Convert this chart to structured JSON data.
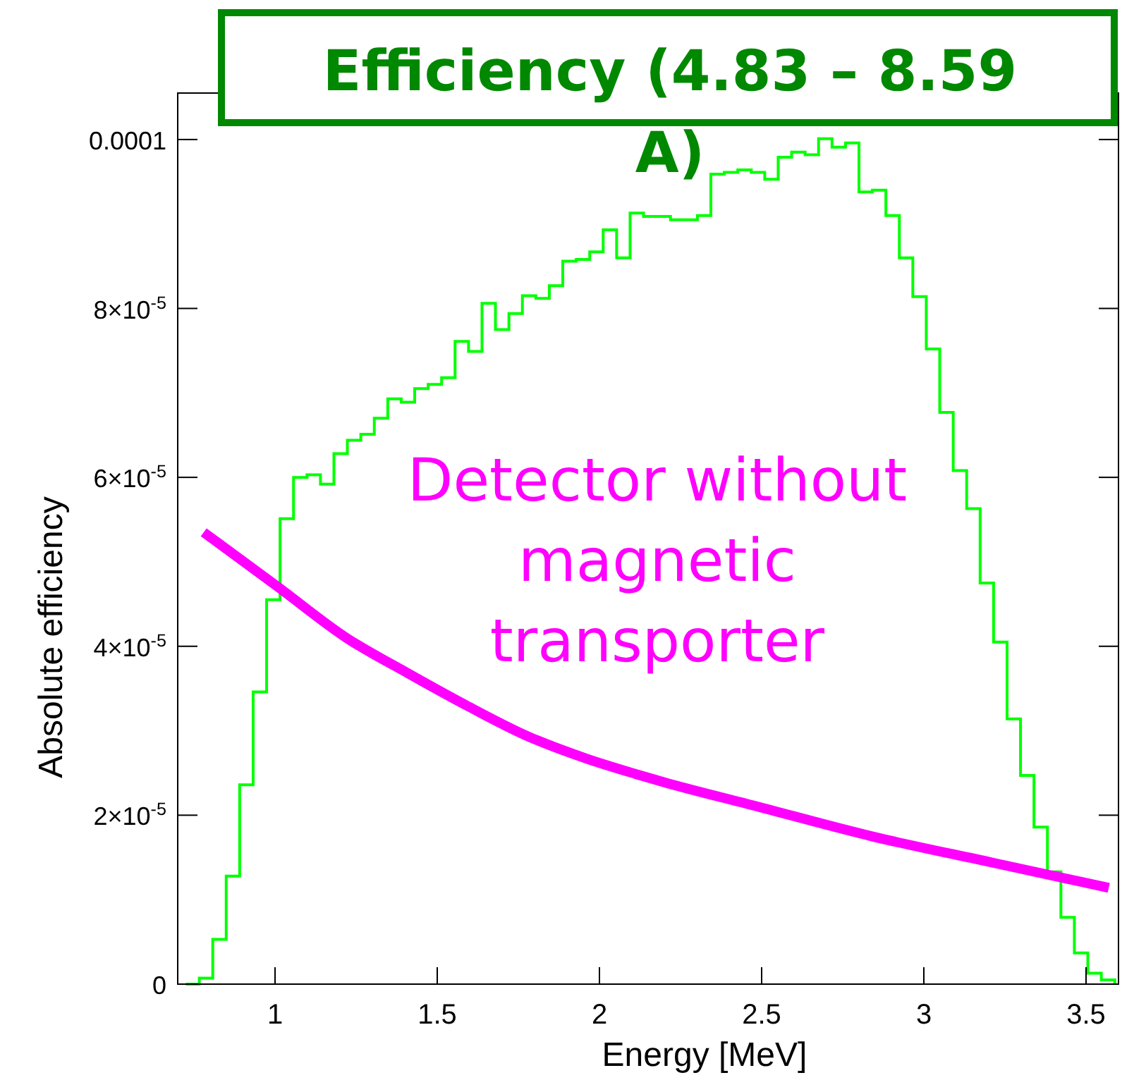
{
  "chart_data": {
    "type": "histogram",
    "title": "Efficiency (4.83 – 8.59 A)",
    "xlabel": "Energy [MeV]",
    "ylabel": "Absolute efficiency",
    "xlim": [
      0.7,
      3.6
    ],
    "xticks": [
      1,
      1.5,
      2,
      2.5,
      3,
      3.5
    ],
    "ylim": [
      0,
      0.0001055
    ],
    "yticks": [
      0,
      {
        "value": 2e-05,
        "label": "2×10$^{-5}$"
      },
      {
        "value": 4e-05,
        "label": "4×10$^{-5}$"
      },
      {
        "value": 6e-05,
        "label": "6×10$^{-5}$"
      },
      {
        "value": 8e-05,
        "label": "8×10$^{-5}$"
      },
      0.0001
    ],
    "grid": false,
    "annotations": [
      "Detector without magnetic transporter"
    ],
    "series": [
      {
        "color": "#00ff00",
        "bins": [
          0.725,
          0.7665,
          0.808,
          0.8495,
          0.891,
          0.9325,
          0.974,
          1.0155,
          1.057,
          1.0985,
          1.14,
          1.1815,
          1.223,
          1.2645,
          1.306,
          1.3475,
          1.389,
          1.4305,
          1.472,
          1.5135,
          1.555,
          1.5965,
          1.638,
          1.6795,
          1.721,
          1.7625,
          1.804,
          1.8455,
          1.887,
          1.9285,
          1.97,
          2.0115,
          2.053,
          2.0945,
          2.136,
          2.1775,
          2.219,
          2.2605,
          2.302,
          2.3435,
          2.385,
          2.4265,
          2.468,
          2.5095,
          2.551,
          2.5925,
          2.634,
          2.6755,
          2.717,
          2.7585,
          2.8,
          2.8415,
          2.883,
          2.9245,
          2.966,
          3.0075,
          3.049,
          3.0905,
          3.132,
          3.1735,
          3.215,
          3.2565,
          3.298,
          3.3395,
          3.381,
          3.4225,
          3.464,
          3.5055,
          3.547,
          3.5885
        ],
        "values": [
          0,
          7e-07,
          5.3e-06,
          1.28e-05,
          2.36e-05,
          3.46e-05,
          4.55e-05,
          5.51e-05,
          6e-05,
          6.03e-05,
          5.92e-05,
          6.28e-05,
          6.44e-05,
          6.51e-05,
          6.7e-05,
          6.93e-05,
          6.89e-05,
          7.05e-05,
          7.1e-05,
          7.18e-05,
          7.61e-05,
          7.49e-05,
          8.06e-05,
          7.75e-05,
          7.94e-05,
          8.15e-05,
          8.12e-05,
          8.27e-05,
          8.56e-05,
          8.58e-05,
          8.67e-05,
          8.93e-05,
          8.6e-05,
          9.13e-05,
          9.09e-05,
          9.09e-05,
          9.05e-05,
          9.05e-05,
          9.1e-05,
          9.59e-05,
          9.61e-05,
          9.64e-05,
          9.61e-05,
          9.53e-05,
          9.79e-05,
          9.85e-05,
          9.82e-05,
          0.0001001,
          9.91e-05,
          9.96e-05,
          9.38e-05,
          9.4e-05,
          9.1e-05,
          8.6e-05,
          8.14e-05,
          7.52e-05,
          6.77e-05,
          6.08e-05,
          5.63e-05,
          4.75e-05,
          4.05e-05,
          3.14e-05,
          2.47e-05,
          1.86e-05,
          1.33e-05,
          7.9e-06,
          3.7e-06,
          1.3e-06,
          5e-07
        ]
      },
      {
        "type": "line",
        "color": "#ff00ff",
        "x": [
          0.78,
          1.01,
          1.22,
          1.41,
          1.59,
          1.77,
          1.96,
          2.11,
          2.2,
          2.48,
          2.84,
          3.21,
          3.57
        ],
        "values": [
          5.35e-05,
          4.7e-05,
          4.1e-05,
          3.68e-05,
          3.3e-05,
          2.95e-05,
          2.67e-05,
          2.49e-05,
          2.39e-05,
          2.11e-05,
          1.75e-05,
          1.44e-05,
          1.14e-05
        ]
      }
    ]
  }
}
